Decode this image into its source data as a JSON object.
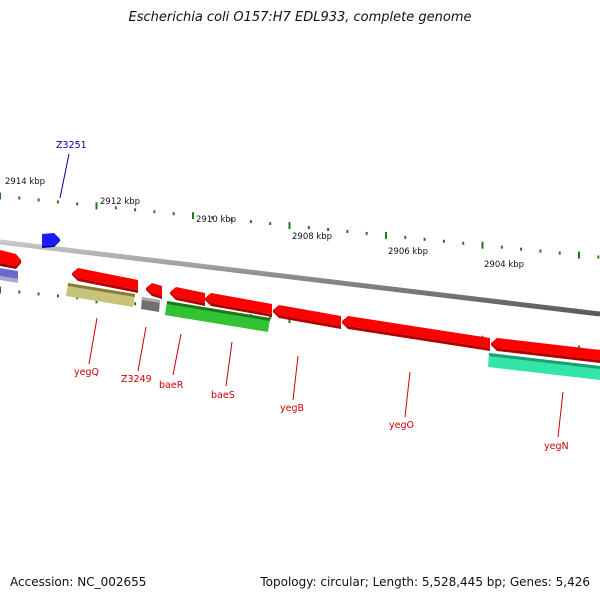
{
  "title": "Escherichia coli O157:H7 EDL933, complete genome",
  "footer": {
    "accession": "Accession: NC_002655",
    "summary": "Topology: circular; Length: 5,528,445 bp; Genes: 5,426"
  },
  "scale_labels": [
    "2914 kbp",
    "2912 kbp",
    "2910 kbp",
    "2908 kbp",
    "2906 kbp",
    "2904 kbp"
  ],
  "colors": {
    "forward_gene": "#ff0000",
    "hypothetical_gene": "#1a1aff",
    "backbone": "#8a8a8a",
    "tick": "#1f7a1f",
    "label_red": "#cc0000",
    "label_blue": "#0000aa"
  },
  "features": [
    {
      "name": "Z3251",
      "strand": "+",
      "color": "#1a1aff",
      "label_color": "#0000aa"
    },
    {
      "name": "yegQ",
      "strand": "-",
      "color": "#c8c27a",
      "label_color": "#cc0000"
    },
    {
      "name": "Z3249",
      "strand": "-",
      "color": "#6f6f6f",
      "label_color": "#cc0000"
    },
    {
      "name": "baeR",
      "strand": "-",
      "color": "#ff8c1a",
      "label_color": "#cc0000"
    },
    {
      "name": "baeS",
      "strand": "-",
      "color": "#33c233",
      "label_color": "#cc0000"
    },
    {
      "name": "yegB",
      "strand": "+",
      "color": "#ff0000",
      "label_color": "#cc0000"
    },
    {
      "name": "yegO",
      "strand": "+",
      "color": "#ff0000",
      "label_color": "#cc0000"
    },
    {
      "name": "yegN",
      "strand": "-",
      "color": "#33e6a6",
      "label_color": "#cc0000"
    }
  ]
}
